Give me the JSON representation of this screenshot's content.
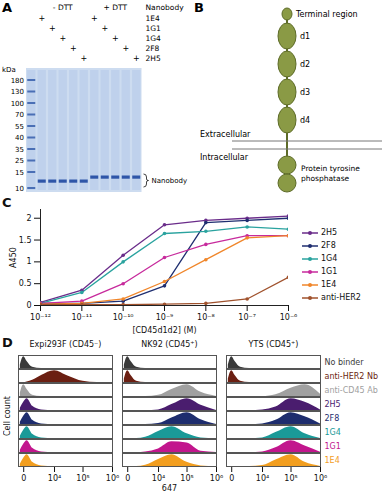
{
  "panels": {
    "A": {
      "letter": "A",
      "type": "gel",
      "conditions": [
        "- DTT",
        "+ DTT"
      ],
      "row_title": "Nanobody",
      "mark": "+",
      "nanobodies": [
        "1E4",
        "1G1",
        "1G4",
        "2F8",
        "2H5"
      ],
      "unit": "kDa",
      "ladder": [
        180,
        130,
        100,
        70,
        55,
        40,
        35,
        25,
        15,
        10
      ],
      "band_label": "Nanobody"
    },
    "B": {
      "letter": "B",
      "type": "diagram",
      "nodes": [
        {
          "label": "Terminal region"
        },
        {
          "label": "d1"
        },
        {
          "label": "d2"
        },
        {
          "label": "d3"
        },
        {
          "label": "d4"
        },
        {
          "label": "Protein tyrosine phosphatase"
        }
      ],
      "membrane": {
        "above": "Extracellular",
        "below": "Intracellular"
      }
    }
  },
  "chart_data": [
    {
      "panel": "C",
      "type": "line",
      "log": "x",
      "grid": false,
      "legend": "right",
      "marker": "circle",
      "x_label": "[CD45d1d2] (M)",
      "y_label": "A450",
      "x": [
        1e-12,
        1e-11,
        1e-10,
        1e-09,
        1e-08,
        1e-07,
        1e-06
      ],
      "xlim": [
        1e-12,
        1e-06
      ],
      "xticks": [
        {
          "value": 1e-12,
          "label": "10⁻¹²"
        },
        {
          "value": 1e-11,
          "label": "10⁻¹¹"
        },
        {
          "value": 1e-10,
          "label": "10⁻¹⁰"
        },
        {
          "value": 1e-09,
          "label": "10⁻⁹"
        },
        {
          "value": 1e-08,
          "label": "10⁻⁸"
        },
        {
          "value": 1e-07,
          "label": "10⁻⁷"
        },
        {
          "value": 1e-06,
          "label": "10⁻⁶"
        }
      ],
      "ylim": [
        0,
        2.2
      ],
      "yticks": [
        0,
        0.5,
        1,
        1.5,
        2
      ],
      "series": [
        {
          "name": "2H5",
          "color": "#6a2c8a",
          "values": [
            0.07,
            0.35,
            1.15,
            1.85,
            1.95,
            2.0,
            2.05
          ]
        },
        {
          "name": "2F8",
          "color": "#1f2e70",
          "values": [
            0.05,
            0.05,
            0.1,
            0.45,
            1.9,
            1.95,
            2.0
          ]
        },
        {
          "name": "1G4",
          "color": "#2aa39f",
          "values": [
            0.05,
            0.3,
            1.0,
            1.65,
            1.7,
            1.8,
            1.75
          ]
        },
        {
          "name": "1G1",
          "color": "#c72a9c",
          "values": [
            0.05,
            0.1,
            0.5,
            1.1,
            1.4,
            1.6,
            1.6
          ]
        },
        {
          "name": "1E4",
          "color": "#f0862a",
          "values": [
            0.03,
            0.05,
            0.15,
            0.55,
            1.05,
            1.55,
            1.6
          ]
        },
        {
          "name": "anti-HER2",
          "color": "#a0522d",
          "values": [
            0.02,
            0.02,
            0.02,
            0.03,
            0.05,
            0.15,
            0.65
          ]
        }
      ]
    },
    {
      "panel": "D",
      "type": "area",
      "log": "x",
      "grid": false,
      "tick_labels": "x",
      "x_label": "647",
      "y_label": "Cell count",
      "panels": [
        "Expi293F (CD45⁻)",
        "NK92 (CD45⁺)",
        "YTS (CD45⁺)"
      ],
      "x": [
        -300,
        0,
        300,
        1000,
        3000,
        10000,
        30000,
        100000,
        300000,
        1000000
      ],
      "xlim": [
        -500,
        1000000
      ],
      "xticks": [
        0,
        {
          "value": 10000,
          "label": "10⁴"
        },
        {
          "value": 100000,
          "label": "10⁵"
        },
        {
          "value": 1000000,
          "label": "10⁶"
        }
      ],
      "ylim": [
        0,
        1.1
      ],
      "series": [
        {
          "name": "No binder",
          "color": "#3a3a3a",
          "values": [
            [
              0.3,
              1,
              0.6,
              0.1,
              0,
              0,
              0,
              0,
              0,
              0
            ],
            [
              0.3,
              1,
              0.6,
              0.1,
              0,
              0,
              0,
              0,
              0,
              0
            ],
            [
              0.3,
              1,
              0.6,
              0.1,
              0,
              0,
              0,
              0,
              0,
              0
            ]
          ]
        },
        {
          "name": "anti-HER2 Nb",
          "color": "#6b1f12",
          "values": [
            [
              0,
              0,
              0.05,
              0.2,
              0.6,
              1,
              0.55,
              0.1,
              0,
              0
            ],
            [
              0.3,
              1,
              0.6,
              0.1,
              0,
              0,
              0,
              0,
              0,
              0
            ],
            [
              0.3,
              1,
              0.6,
              0.1,
              0,
              0,
              0,
              0,
              0,
              0
            ]
          ]
        },
        {
          "name": "anti-CD45 Ab",
          "color": "#a0a0a0",
          "values": [
            [
              0.3,
              1,
              0.6,
              0.1,
              0,
              0,
              0,
              0,
              0,
              0
            ],
            [
              0,
              0,
              0,
              0,
              0,
              0.1,
              0.6,
              1,
              0.35,
              0
            ],
            [
              0,
              0,
              0,
              0,
              0,
              0,
              0.15,
              0.7,
              1,
              0.2
            ]
          ]
        },
        {
          "name": "2H5",
          "color": "#4a1d6e",
          "values": [
            [
              0.2,
              0.7,
              1,
              0.35,
              0.05,
              0,
              0,
              0,
              0,
              0
            ],
            [
              0,
              0,
              0,
              0,
              0,
              0.05,
              0.5,
              1,
              0.45,
              0
            ],
            [
              0,
              0,
              0,
              0,
              0,
              0.05,
              0.3,
              1,
              0.7,
              0.05
            ]
          ]
        },
        {
          "name": "2F8",
          "color": "#1e2d6e",
          "values": [
            [
              0.2,
              0.7,
              1,
              0.35,
              0.05,
              0,
              0,
              0,
              0,
              0
            ],
            [
              0,
              0,
              0,
              0,
              0,
              0.08,
              0.55,
              1,
              0.4,
              0
            ],
            [
              0,
              0,
              0,
              0,
              0,
              0.05,
              0.35,
              1,
              0.65,
              0.05
            ]
          ]
        },
        {
          "name": "1G4",
          "color": "#1a9a98",
          "values": [
            [
              0.2,
              0.7,
              1,
              0.35,
              0.05,
              0,
              0,
              0,
              0,
              0
            ],
            [
              0,
              0,
              0,
              0,
              0.1,
              0.6,
              1,
              0.4,
              0.05,
              0
            ],
            [
              0,
              0,
              0,
              0,
              0,
              0.05,
              0.5,
              1,
              0.4,
              0
            ]
          ]
        },
        {
          "name": "1G1",
          "color": "#c2168d",
          "values": [
            [
              0.2,
              0.7,
              1,
              0.35,
              0.05,
              0,
              0,
              0,
              0,
              0
            ],
            [
              0,
              0,
              0,
              0,
              0.05,
              0.3,
              0.9,
              0.8,
              0.1,
              0
            ],
            [
              0,
              0,
              0,
              0,
              0,
              0.05,
              0.4,
              1,
              0.55,
              0.02
            ]
          ]
        },
        {
          "name": "1E4",
          "color": "#f29e1f",
          "values": [
            [
              0.2,
              0.7,
              1,
              0.35,
              0.05,
              0,
              0,
              0,
              0,
              0
            ],
            [
              0,
              0,
              0,
              0,
              0.1,
              0.6,
              1,
              0.35,
              0.05,
              0
            ],
            [
              0,
              0,
              0,
              0,
              0,
              0.08,
              0.55,
              1,
              0.35,
              0
            ]
          ]
        }
      ]
    }
  ]
}
